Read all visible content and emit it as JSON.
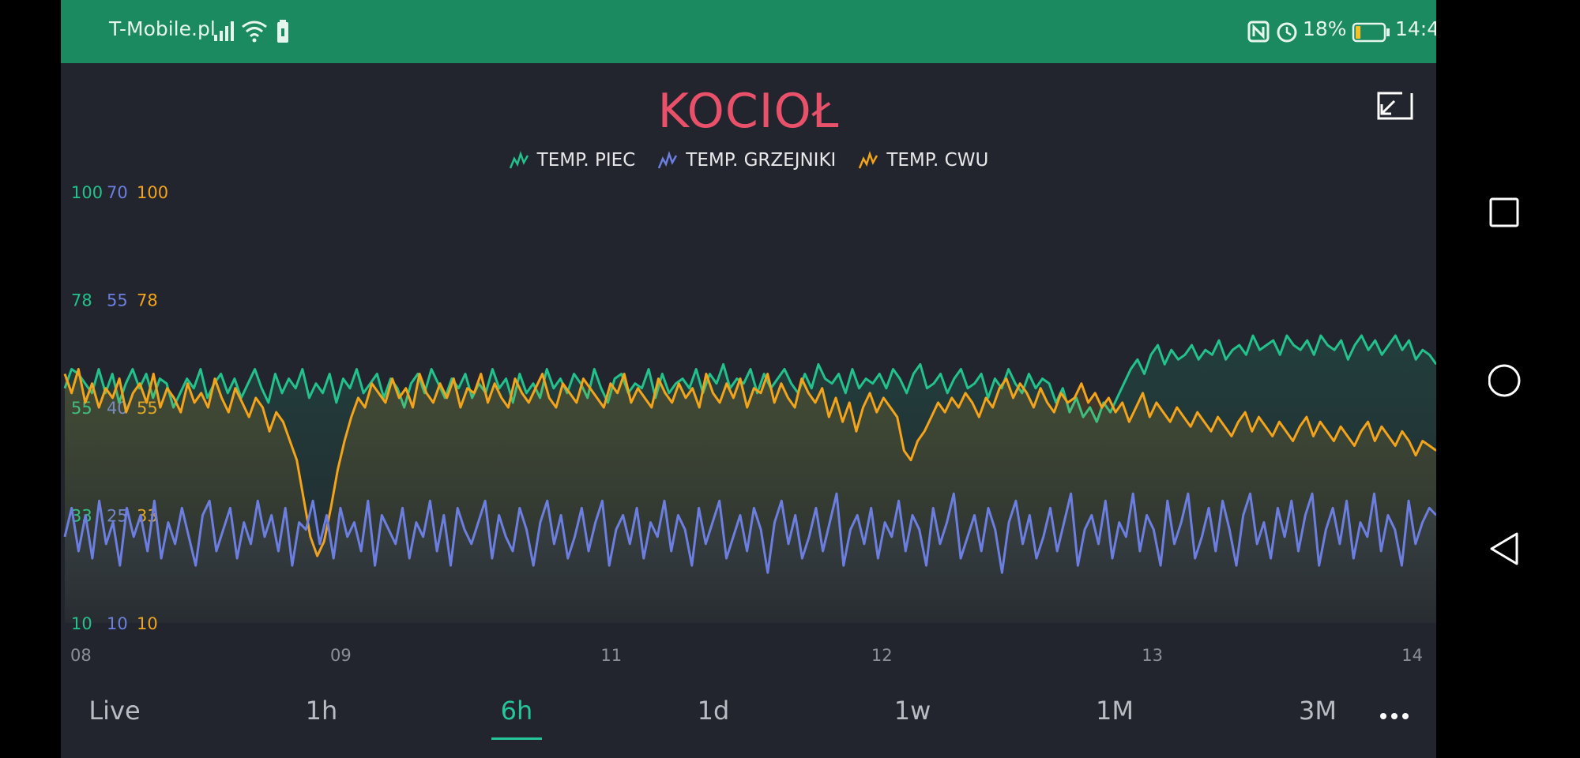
{
  "status_bar": {
    "carrier": "T-Mobile.pl",
    "battery_percent": "18%",
    "battery_level": 0.18,
    "clock": "14:4",
    "icons": [
      "signal-icon",
      "wifi-icon",
      "battery-saver-icon",
      "nfc-icon",
      "alarm-icon",
      "battery-icon"
    ]
  },
  "widget": {
    "title": "KOCIOŁ",
    "fullscreen_icon": "exit-fullscreen-icon"
  },
  "colors": {
    "piec": "#23c28c",
    "grzejniki": "#6c7fe0",
    "cwu": "#f3a41a",
    "title": "#e9516a",
    "accent": "#25c79a"
  },
  "chart_data": {
    "type": "line",
    "x_tick_labels": [
      "08",
      "09",
      "11",
      "12",
      "13",
      "14"
    ],
    "series": [
      {
        "name": "TEMP. PIEC",
        "color": "#23c28c",
        "y_ticks": [
          "100",
          "78",
          "55",
          "33",
          "10"
        ],
        "ylim": [
          10,
          100
        ],
        "values": [
          59,
          63,
          62,
          60,
          58,
          63,
          58,
          62,
          56,
          60,
          63,
          59,
          62,
          57,
          61,
          60,
          55,
          58,
          61,
          59,
          63,
          57,
          60,
          62,
          58,
          61,
          57,
          60,
          63,
          59,
          56,
          62,
          58,
          61,
          59,
          63,
          57,
          60,
          58,
          62,
          56,
          61,
          59,
          63,
          58,
          60,
          62,
          57,
          61,
          59,
          55,
          60,
          62,
          58,
          63,
          60,
          57,
          61,
          59,
          62,
          57,
          60,
          58,
          63,
          59,
          61,
          56,
          62,
          58,
          60,
          57,
          63,
          59,
          61,
          58,
          62,
          60,
          57,
          63,
          59,
          56,
          61,
          62,
          58,
          60,
          59,
          63,
          57,
          62,
          58,
          60,
          61,
          59,
          63,
          58,
          62,
          60,
          64,
          59,
          61,
          60,
          63,
          58,
          62,
          59,
          61,
          63,
          60,
          58,
          62,
          59,
          64,
          61,
          60,
          62,
          58,
          63,
          59,
          61,
          60,
          62,
          59,
          63,
          61,
          58,
          62,
          64,
          59,
          60,
          62,
          58,
          61,
          63,
          59,
          60,
          62,
          57,
          61,
          59,
          63,
          60,
          58,
          62,
          59,
          61,
          60,
          56,
          59,
          54,
          57,
          53,
          55,
          52,
          56,
          54,
          57,
          60,
          63,
          65,
          62,
          66,
          68,
          64,
          67,
          65,
          66,
          68,
          65,
          67,
          66,
          69,
          65,
          67,
          68,
          66,
          70,
          67,
          68,
          69,
          66,
          70,
          68,
          67,
          69,
          66,
          70,
          68,
          67,
          69,
          65,
          68,
          70,
          67,
          69,
          66,
          68,
          70,
          67,
          69,
          65,
          67,
          66,
          64
        ]
      },
      {
        "name": "TEMP. GRZEJNIKI",
        "color": "#6c7fe0",
        "y_ticks": [
          "70",
          "55",
          "40",
          "25",
          "10"
        ],
        "ylim": [
          10,
          70
        ],
        "values": [
          22,
          26,
          20,
          25,
          19,
          27,
          21,
          24,
          18,
          26,
          22,
          25,
          20,
          27,
          19,
          24,
          21,
          26,
          22,
          18,
          25,
          27,
          20,
          23,
          26,
          19,
          24,
          21,
          27,
          22,
          25,
          20,
          26,
          18,
          24,
          23,
          27,
          21,
          25,
          19,
          26,
          22,
          24,
          20,
          27,
          18,
          25,
          23,
          21,
          26,
          19,
          24,
          22,
          27,
          20,
          25,
          18,
          26,
          23,
          21,
          24,
          27,
          19,
          25,
          22,
          20,
          26,
          23,
          18,
          24,
          27,
          21,
          25,
          19,
          22,
          26,
          20,
          24,
          27,
          18,
          23,
          25,
          21,
          26,
          19,
          24,
          22,
          27,
          20,
          25,
          23,
          18,
          26,
          21,
          24,
          27,
          19,
          22,
          25,
          20,
          26,
          23,
          17,
          24,
          27,
          21,
          25,
          19,
          22,
          26,
          20,
          24,
          28,
          18,
          23,
          25,
          21,
          26,
          19,
          24,
          22,
          27,
          20,
          25,
          23,
          18,
          26,
          21,
          24,
          28,
          19,
          22,
          25,
          20,
          26,
          23,
          17,
          24,
          27,
          21,
          25,
          19,
          22,
          26,
          20,
          24,
          28,
          18,
          23,
          25,
          21,
          27,
          19,
          24,
          22,
          28,
          20,
          25,
          23,
          18,
          27,
          21,
          24,
          28,
          19,
          22,
          26,
          20,
          27,
          23,
          18,
          25,
          28,
          21,
          24,
          19,
          26,
          22,
          27,
          20,
          25,
          28,
          18,
          23,
          26,
          21,
          27,
          19,
          24,
          22,
          28,
          20,
          25,
          23,
          18,
          27,
          21,
          24,
          26,
          25
        ]
      },
      {
        "name": "TEMP. CWU",
        "color": "#f3a41a",
        "y_ticks": [
          "100",
          "78",
          "55",
          "33",
          "10"
        ],
        "ylim": [
          10,
          100
        ],
        "values": [
          62,
          58,
          63,
          56,
          60,
          55,
          59,
          57,
          61,
          54,
          58,
          60,
          56,
          62,
          55,
          59,
          57,
          54,
          60,
          56,
          58,
          55,
          61,
          57,
          54,
          59,
          56,
          53,
          57,
          55,
          50,
          54,
          52,
          48,
          44,
          36,
          28,
          24,
          27,
          34,
          42,
          48,
          53,
          57,
          55,
          60,
          58,
          56,
          61,
          57,
          59,
          55,
          62,
          58,
          56,
          60,
          57,
          61,
          55,
          59,
          58,
          62,
          56,
          60,
          57,
          55,
          61,
          58,
          56,
          59,
          62,
          57,
          55,
          60,
          58,
          56,
          61,
          59,
          57,
          55,
          60,
          58,
          62,
          56,
          59,
          57,
          55,
          61,
          58,
          56,
          60,
          57,
          59,
          55,
          62,
          58,
          56,
          60,
          57,
          61,
          55,
          59,
          58,
          62,
          56,
          60,
          57,
          55,
          61,
          58,
          56,
          59,
          53,
          57,
          52,
          56,
          50,
          55,
          58,
          54,
          57,
          55,
          53,
          46,
          44,
          48,
          50,
          53,
          56,
          54,
          57,
          55,
          58,
          56,
          53,
          57,
          55,
          59,
          61,
          57,
          60,
          58,
          55,
          59,
          56,
          54,
          58,
          56,
          57,
          60,
          56,
          58,
          55,
          57,
          54,
          56,
          52,
          55,
          58,
          53,
          56,
          54,
          52,
          55,
          53,
          51,
          54,
          52,
          50,
          53,
          51,
          49,
          52,
          54,
          50,
          53,
          51,
          49,
          52,
          50,
          48,
          51,
          53,
          49,
          52,
          50,
          48,
          51,
          49,
          47,
          50,
          52,
          48,
          51,
          49,
          47,
          50,
          48,
          45,
          48,
          47,
          46
        ]
      }
    ],
    "grid": false,
    "legend_position": "top-center"
  },
  "time_ranges": {
    "items": [
      "Live",
      "1h",
      "6h",
      "1d",
      "1w",
      "1M",
      "3M"
    ],
    "selected": "6h",
    "more_icon": "more-horizontal-icon"
  },
  "nav_bar": {
    "icons": [
      "recent-apps-icon",
      "home-icon",
      "back-icon"
    ]
  }
}
